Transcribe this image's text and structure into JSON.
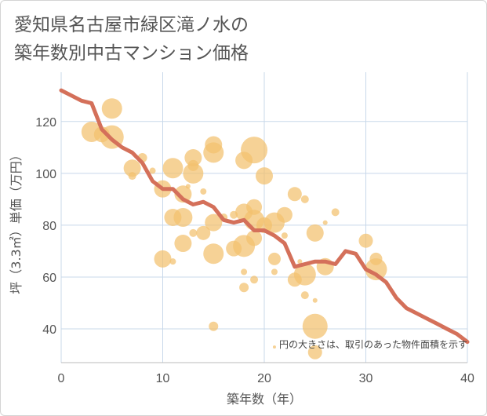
{
  "title": "愛知県名古屋市緑区滝ノ水の\n築年数別中古マンション価格",
  "chart_data": {
    "type": "scatter",
    "title": "愛知県名古屋市緑区滝ノ水の\n築年数別中古マンション価格",
    "xlabel": "築年数（年）",
    "ylabel": "坪（3.3㎡）単価（万円）",
    "xlim": [
      0,
      40
    ],
    "ylim": [
      27,
      139
    ],
    "x_ticks": [
      "0",
      "10",
      "20",
      "30",
      "40"
    ],
    "y_ticks": [
      "40",
      "60",
      "80",
      "100",
      "120"
    ],
    "note": "円の大きさは、取引のあった物件面積を示す",
    "grid": true,
    "colors": {
      "bubble": "#f3c06e",
      "line": "#d4705a",
      "grid": "#c8d8ea"
    },
    "bubbles": [
      {
        "x": 3,
        "y": 116,
        "s": 13
      },
      {
        "x": 4,
        "y": 115,
        "s": 10
      },
      {
        "x": 5,
        "y": 125,
        "s": 13
      },
      {
        "x": 5,
        "y": 114,
        "s": 15
      },
      {
        "x": 7,
        "y": 102,
        "s": 11
      },
      {
        "x": 7,
        "y": 99,
        "s": 5
      },
      {
        "x": 8,
        "y": 106,
        "s": 6
      },
      {
        "x": 9,
        "y": 101,
        "s": 4
      },
      {
        "x": 10,
        "y": 94,
        "s": 11
      },
      {
        "x": 10,
        "y": 67,
        "s": 11
      },
      {
        "x": 11,
        "y": 102,
        "s": 13
      },
      {
        "x": 11,
        "y": 83,
        "s": 11
      },
      {
        "x": 11,
        "y": 66,
        "s": 4
      },
      {
        "x": 12,
        "y": 92,
        "s": 11
      },
      {
        "x": 12,
        "y": 83,
        "s": 12
      },
      {
        "x": 12,
        "y": 73,
        "s": 11
      },
      {
        "x": 12.5,
        "y": 95,
        "s": 3
      },
      {
        "x": 13,
        "y": 106,
        "s": 11
      },
      {
        "x": 13,
        "y": 103,
        "s": 7
      },
      {
        "x": 13,
        "y": 100,
        "s": 13
      },
      {
        "x": 13,
        "y": 77,
        "s": 5
      },
      {
        "x": 14,
        "y": 93,
        "s": 4
      },
      {
        "x": 14,
        "y": 77,
        "s": 9
      },
      {
        "x": 15,
        "y": 111,
        "s": 11
      },
      {
        "x": 15,
        "y": 108,
        "s": 13
      },
      {
        "x": 15,
        "y": 81,
        "s": 11
      },
      {
        "x": 15,
        "y": 69,
        "s": 13
      },
      {
        "x": 15,
        "y": 41,
        "s": 6
      },
      {
        "x": 16,
        "y": 83,
        "s": 5
      },
      {
        "x": 17,
        "y": 71,
        "s": 10
      },
      {
        "x": 17,
        "y": 84,
        "s": 5
      },
      {
        "x": 18,
        "y": 105,
        "s": 11
      },
      {
        "x": 18,
        "y": 85,
        "s": 11
      },
      {
        "x": 18,
        "y": 72,
        "s": 14
      },
      {
        "x": 18,
        "y": 56,
        "s": 6
      },
      {
        "x": 18,
        "y": 62,
        "s": 4
      },
      {
        "x": 19,
        "y": 109,
        "s": 17
      },
      {
        "x": 19,
        "y": 87,
        "s": 10
      },
      {
        "x": 19,
        "y": 82,
        "s": 13
      },
      {
        "x": 19,
        "y": 75,
        "s": 10
      },
      {
        "x": 19,
        "y": 59,
        "s": 5
      },
      {
        "x": 20,
        "y": 99,
        "s": 11
      },
      {
        "x": 20,
        "y": 80,
        "s": 10
      },
      {
        "x": 21,
        "y": 81,
        "s": 13
      },
      {
        "x": 21,
        "y": 67,
        "s": 8
      },
      {
        "x": 21,
        "y": 62,
        "s": 4
      },
      {
        "x": 21,
        "y": 33,
        "s": 2
      },
      {
        "x": 22,
        "y": 84,
        "s": 10
      },
      {
        "x": 22,
        "y": 76,
        "s": 4
      },
      {
        "x": 23,
        "y": 92,
        "s": 9
      },
      {
        "x": 23,
        "y": 59,
        "s": 9
      },
      {
        "x": 23.5,
        "y": 66,
        "s": 3
      },
      {
        "x": 24,
        "y": 90,
        "s": 5
      },
      {
        "x": 24,
        "y": 61,
        "s": 14
      },
      {
        "x": 24,
        "y": 53,
        "s": 5
      },
      {
        "x": 25,
        "y": 77,
        "s": 11
      },
      {
        "x": 25,
        "y": 41,
        "s": 16
      },
      {
        "x": 25,
        "y": 31,
        "s": 9
      },
      {
        "x": 25,
        "y": 51,
        "s": 3
      },
      {
        "x": 26,
        "y": 81,
        "s": 3
      },
      {
        "x": 26,
        "y": 64,
        "s": 11
      },
      {
        "x": 27,
        "y": 85,
        "s": 5
      },
      {
        "x": 30,
        "y": 74,
        "s": 9
      },
      {
        "x": 31,
        "y": 67,
        "s": 8
      },
      {
        "x": 31,
        "y": 63,
        "s": 14
      }
    ],
    "line": {
      "x": [
        0,
        1,
        2,
        3,
        4,
        5,
        6,
        7,
        8,
        9,
        10,
        11,
        12,
        13,
        14,
        15,
        16,
        17,
        18,
        19,
        20,
        21,
        22,
        23,
        24,
        25,
        26,
        27,
        28,
        29,
        30,
        31,
        32,
        33,
        34,
        35,
        36,
        37,
        38,
        39,
        40
      ],
      "y": [
        132,
        130,
        128,
        127,
        117,
        113,
        110,
        108,
        104,
        97,
        94,
        94,
        90,
        88,
        89,
        87,
        82,
        81,
        82,
        78,
        78,
        76,
        73,
        64,
        65,
        66,
        66,
        65,
        70,
        69,
        63,
        61,
        58,
        52,
        48,
        46,
        44,
        42,
        40,
        38,
        35
      ]
    }
  }
}
